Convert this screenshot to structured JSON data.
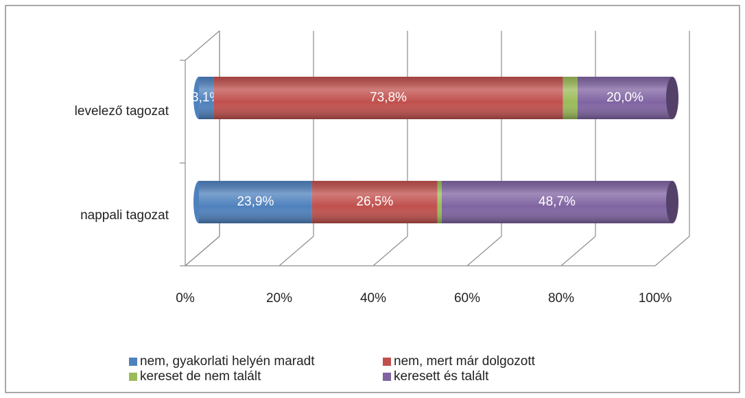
{
  "chart_data": {
    "type": "bar3d_stacked_horizontal",
    "categories": [
      "nappali tagozat",
      "levelező tagozat"
    ],
    "series": [
      {
        "name": "nem, gyakorlati helyén maradt",
        "color": "#4f81bd",
        "values": [
          23.9,
          3.1
        ],
        "value_labels": [
          "23,9%",
          "3,1%"
        ]
      },
      {
        "name": "nem, mert már dolgozott",
        "color": "#c0504d",
        "values": [
          26.5,
          73.8
        ],
        "value_labels": [
          "26,5%",
          "73,8%"
        ]
      },
      {
        "name": "kereset de nem talált",
        "color": "#9bbb59",
        "values": [
          0.9,
          3.1
        ]
      },
      {
        "name": "keresett és talált",
        "color": "#8064a2",
        "values": [
          48.7,
          20.0
        ],
        "value_labels": [
          "48,7%",
          "20,0%"
        ]
      }
    ],
    "xlim": [
      0,
      100
    ],
    "xticks": [
      {
        "value": 0,
        "label": "0%"
      },
      {
        "value": 20,
        "label": "20%"
      },
      {
        "value": 40,
        "label": "40%"
      },
      {
        "value": 60,
        "label": "60%"
      },
      {
        "value": 80,
        "label": "80%"
      },
      {
        "value": 100,
        "label": "100%"
      }
    ],
    "grid": true
  }
}
